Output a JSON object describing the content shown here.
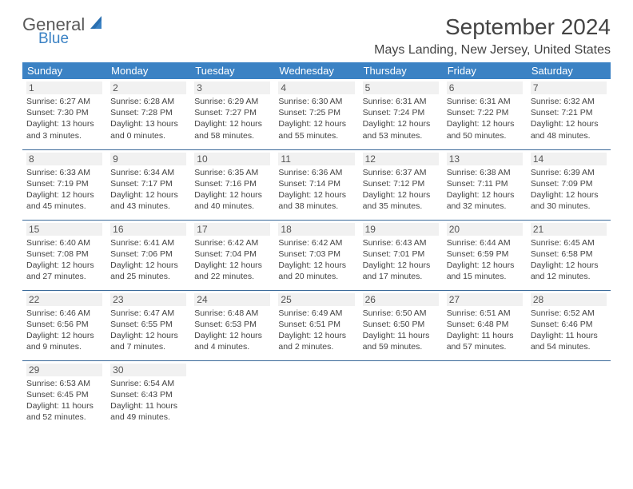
{
  "logo": {
    "general": "General",
    "blue": "Blue"
  },
  "title": "September 2024",
  "location": "Mays Landing, New Jersey, United States",
  "colors": {
    "header_bg": "#3b82c4",
    "header_text": "#ffffff",
    "border": "#3b6a9a",
    "daynum_bg": "#f1f1f1",
    "text": "#444444",
    "logo_gray": "#5a5a5a",
    "logo_blue": "#3b82c4"
  },
  "typography": {
    "title_size": 28,
    "location_size": 16,
    "header_size": 13,
    "daynum_size": 12,
    "info_size": 10.5
  },
  "columns": [
    "Sunday",
    "Monday",
    "Tuesday",
    "Wednesday",
    "Thursday",
    "Friday",
    "Saturday"
  ],
  "weeks": [
    [
      {
        "day": "1",
        "sunrise": "Sunrise: 6:27 AM",
        "sunset": "Sunset: 7:30 PM",
        "daylight": "Daylight: 13 hours and 3 minutes."
      },
      {
        "day": "2",
        "sunrise": "Sunrise: 6:28 AM",
        "sunset": "Sunset: 7:28 PM",
        "daylight": "Daylight: 13 hours and 0 minutes."
      },
      {
        "day": "3",
        "sunrise": "Sunrise: 6:29 AM",
        "sunset": "Sunset: 7:27 PM",
        "daylight": "Daylight: 12 hours and 58 minutes."
      },
      {
        "day": "4",
        "sunrise": "Sunrise: 6:30 AM",
        "sunset": "Sunset: 7:25 PM",
        "daylight": "Daylight: 12 hours and 55 minutes."
      },
      {
        "day": "5",
        "sunrise": "Sunrise: 6:31 AM",
        "sunset": "Sunset: 7:24 PM",
        "daylight": "Daylight: 12 hours and 53 minutes."
      },
      {
        "day": "6",
        "sunrise": "Sunrise: 6:31 AM",
        "sunset": "Sunset: 7:22 PM",
        "daylight": "Daylight: 12 hours and 50 minutes."
      },
      {
        "day": "7",
        "sunrise": "Sunrise: 6:32 AM",
        "sunset": "Sunset: 7:21 PM",
        "daylight": "Daylight: 12 hours and 48 minutes."
      }
    ],
    [
      {
        "day": "8",
        "sunrise": "Sunrise: 6:33 AM",
        "sunset": "Sunset: 7:19 PM",
        "daylight": "Daylight: 12 hours and 45 minutes."
      },
      {
        "day": "9",
        "sunrise": "Sunrise: 6:34 AM",
        "sunset": "Sunset: 7:17 PM",
        "daylight": "Daylight: 12 hours and 43 minutes."
      },
      {
        "day": "10",
        "sunrise": "Sunrise: 6:35 AM",
        "sunset": "Sunset: 7:16 PM",
        "daylight": "Daylight: 12 hours and 40 minutes."
      },
      {
        "day": "11",
        "sunrise": "Sunrise: 6:36 AM",
        "sunset": "Sunset: 7:14 PM",
        "daylight": "Daylight: 12 hours and 38 minutes."
      },
      {
        "day": "12",
        "sunrise": "Sunrise: 6:37 AM",
        "sunset": "Sunset: 7:12 PM",
        "daylight": "Daylight: 12 hours and 35 minutes."
      },
      {
        "day": "13",
        "sunrise": "Sunrise: 6:38 AM",
        "sunset": "Sunset: 7:11 PM",
        "daylight": "Daylight: 12 hours and 32 minutes."
      },
      {
        "day": "14",
        "sunrise": "Sunrise: 6:39 AM",
        "sunset": "Sunset: 7:09 PM",
        "daylight": "Daylight: 12 hours and 30 minutes."
      }
    ],
    [
      {
        "day": "15",
        "sunrise": "Sunrise: 6:40 AM",
        "sunset": "Sunset: 7:08 PM",
        "daylight": "Daylight: 12 hours and 27 minutes."
      },
      {
        "day": "16",
        "sunrise": "Sunrise: 6:41 AM",
        "sunset": "Sunset: 7:06 PM",
        "daylight": "Daylight: 12 hours and 25 minutes."
      },
      {
        "day": "17",
        "sunrise": "Sunrise: 6:42 AM",
        "sunset": "Sunset: 7:04 PM",
        "daylight": "Daylight: 12 hours and 22 minutes."
      },
      {
        "day": "18",
        "sunrise": "Sunrise: 6:42 AM",
        "sunset": "Sunset: 7:03 PM",
        "daylight": "Daylight: 12 hours and 20 minutes."
      },
      {
        "day": "19",
        "sunrise": "Sunrise: 6:43 AM",
        "sunset": "Sunset: 7:01 PM",
        "daylight": "Daylight: 12 hours and 17 minutes."
      },
      {
        "day": "20",
        "sunrise": "Sunrise: 6:44 AM",
        "sunset": "Sunset: 6:59 PM",
        "daylight": "Daylight: 12 hours and 15 minutes."
      },
      {
        "day": "21",
        "sunrise": "Sunrise: 6:45 AM",
        "sunset": "Sunset: 6:58 PM",
        "daylight": "Daylight: 12 hours and 12 minutes."
      }
    ],
    [
      {
        "day": "22",
        "sunrise": "Sunrise: 6:46 AM",
        "sunset": "Sunset: 6:56 PM",
        "daylight": "Daylight: 12 hours and 9 minutes."
      },
      {
        "day": "23",
        "sunrise": "Sunrise: 6:47 AM",
        "sunset": "Sunset: 6:55 PM",
        "daylight": "Daylight: 12 hours and 7 minutes."
      },
      {
        "day": "24",
        "sunrise": "Sunrise: 6:48 AM",
        "sunset": "Sunset: 6:53 PM",
        "daylight": "Daylight: 12 hours and 4 minutes."
      },
      {
        "day": "25",
        "sunrise": "Sunrise: 6:49 AM",
        "sunset": "Sunset: 6:51 PM",
        "daylight": "Daylight: 12 hours and 2 minutes."
      },
      {
        "day": "26",
        "sunrise": "Sunrise: 6:50 AM",
        "sunset": "Sunset: 6:50 PM",
        "daylight": "Daylight: 11 hours and 59 minutes."
      },
      {
        "day": "27",
        "sunrise": "Sunrise: 6:51 AM",
        "sunset": "Sunset: 6:48 PM",
        "daylight": "Daylight: 11 hours and 57 minutes."
      },
      {
        "day": "28",
        "sunrise": "Sunrise: 6:52 AM",
        "sunset": "Sunset: 6:46 PM",
        "daylight": "Daylight: 11 hours and 54 minutes."
      }
    ],
    [
      {
        "day": "29",
        "sunrise": "Sunrise: 6:53 AM",
        "sunset": "Sunset: 6:45 PM",
        "daylight": "Daylight: 11 hours and 52 minutes."
      },
      {
        "day": "30",
        "sunrise": "Sunrise: 6:54 AM",
        "sunset": "Sunset: 6:43 PM",
        "daylight": "Daylight: 11 hours and 49 minutes."
      },
      {
        "empty": true
      },
      {
        "empty": true
      },
      {
        "empty": true
      },
      {
        "empty": true
      },
      {
        "empty": true
      }
    ]
  ]
}
